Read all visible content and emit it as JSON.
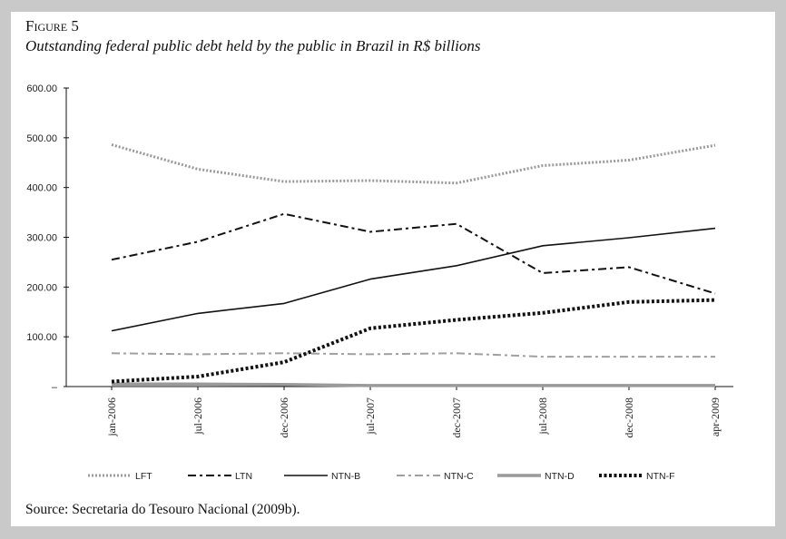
{
  "figure": {
    "label": "Figure 5",
    "title": "Outstanding federal public debt held by the public in Brazil in R$ billions",
    "source": "Source: Secretaria do Tesouro Nacional (2009b)."
  },
  "chart_data": {
    "type": "line",
    "title": "Outstanding federal public debt held by the public in Brazil in R$ billions",
    "xlabel": "",
    "ylabel": "",
    "ylim": [
      0,
      600
    ],
    "y_ticks": [
      "–",
      "100.00",
      "200.00",
      "300.00",
      "400.00",
      "500.00",
      "600.00"
    ],
    "categories": [
      "jan-2006",
      "jul-2006",
      "dec-2006",
      "jul-2007",
      "dec-2007",
      "jul-2008",
      "dec-2008",
      "apr-2009"
    ],
    "legend_position": "bottom",
    "series": [
      {
        "name": "LFT",
        "color": "#9a9a9a",
        "style": "dotted",
        "values": [
          486,
          437,
          412,
          414,
          409,
          444,
          455,
          485
        ]
      },
      {
        "name": "LTN",
        "color": "#111111",
        "style": "dashdot",
        "values": [
          255,
          291,
          347,
          311,
          327,
          228,
          240,
          187
        ]
      },
      {
        "name": "NTN-B",
        "color": "#111111",
        "style": "solid",
        "values": [
          112,
          147,
          167,
          216,
          243,
          283,
          299,
          318
        ]
      },
      {
        "name": "NTN-C",
        "color": "#a0a0a0",
        "style": "dashdot",
        "values": [
          67,
          65,
          67,
          65,
          67,
          60,
          60,
          60
        ]
      },
      {
        "name": "NTN-D",
        "color": "#9a9a9a",
        "style": "solid-thick",
        "values": [
          5,
          5,
          4,
          2,
          2,
          2,
          2,
          2
        ]
      },
      {
        "name": "NTN-F",
        "color": "#111111",
        "style": "dotted-thick",
        "values": [
          10,
          20,
          49,
          117,
          134,
          148,
          170,
          174
        ]
      }
    ]
  }
}
